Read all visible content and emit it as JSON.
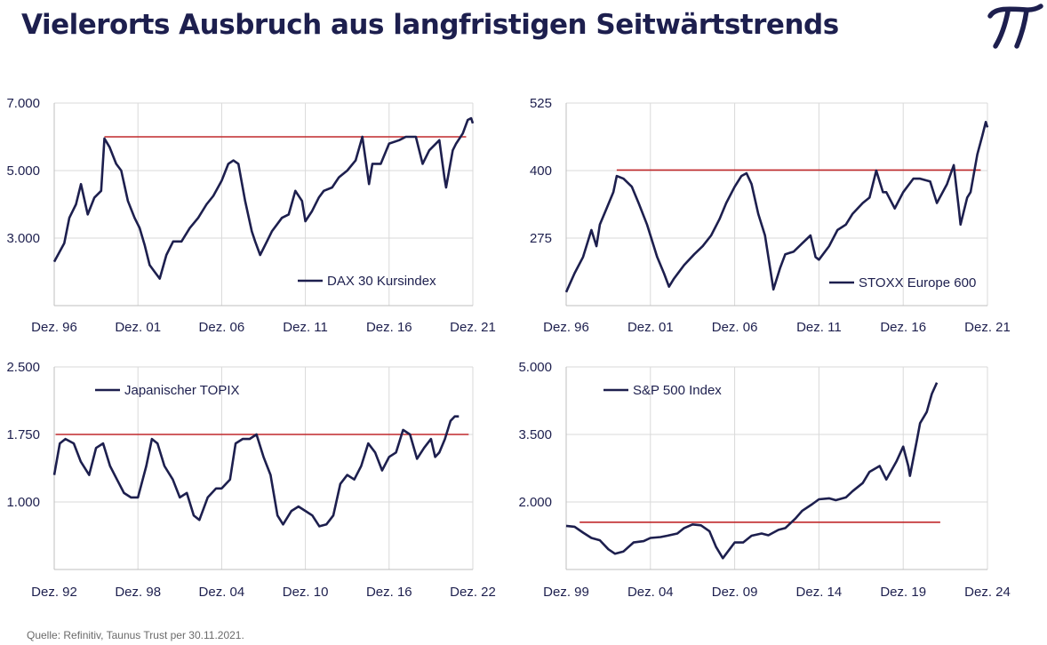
{
  "header": {
    "title": "Vielerorts Ausbruch aus langfristigen Seitwärtstrends",
    "logo_icon": "pi-logo-icon"
  },
  "footer": {
    "source": "Quelle: Refinitiv, Taunus Trust per 30.11.2021."
  },
  "colors": {
    "line": "#1d1f4e",
    "reference": "#c0292b",
    "grid": "#d9d9d9",
    "text": "#1d1f4e"
  },
  "chart_data": [
    {
      "type": "line",
      "title": "",
      "legend": "DAX 30 Kursindex",
      "legend_position": "bottom-right",
      "x_ticks": [
        "Dez. 96",
        "Dez. 01",
        "Dez. 06",
        "Dez. 11",
        "Dez. 16",
        "Dez. 21"
      ],
      "x_range": [
        1996.9,
        2021.9
      ],
      "y_ticks": [
        "7.000",
        "5.000",
        "3.000"
      ],
      "y_tick_values": [
        7000,
        5000,
        3000
      ],
      "ylim": [
        1000,
        7000
      ],
      "grid": true,
      "reference_line": {
        "value": 6000,
        "from": 1999.9,
        "to": 2021.5
      },
      "series": [
        {
          "name": "DAX 30 Kursindex",
          "x": [
            1996.9,
            1997.5,
            1997.8,
            1998.2,
            1998.5,
            1998.9,
            1999.3,
            1999.7,
            1999.9,
            2000.2,
            2000.6,
            2000.9,
            2001.3,
            2001.7,
            2002.0,
            2002.3,
            2002.6,
            2002.9,
            2003.2,
            2003.6,
            2004.0,
            2004.5,
            2005.0,
            2005.5,
            2006.0,
            2006.4,
            2006.9,
            2007.3,
            2007.6,
            2007.9,
            2008.3,
            2008.7,
            2008.9,
            2009.2,
            2009.6,
            2009.9,
            2010.5,
            2010.9,
            2011.3,
            2011.7,
            2011.9,
            2012.3,
            2012.7,
            2013.0,
            2013.5,
            2013.9,
            2014.4,
            2014.9,
            2015.3,
            2015.7,
            2015.9,
            2016.4,
            2016.9,
            2017.5,
            2017.9,
            2018.5,
            2018.9,
            2019.3,
            2019.9,
            2020.2,
            2020.3,
            2020.7,
            2020.9,
            2021.3,
            2021.6,
            2021.8,
            2021.9
          ],
          "values": [
            2300,
            2850,
            3600,
            4000,
            4600,
            3700,
            4200,
            4400,
            5950,
            5700,
            5200,
            5000,
            4100,
            3600,
            3300,
            2800,
            2200,
            2000,
            1800,
            2500,
            2900,
            2900,
            3300,
            3600,
            4000,
            4250,
            4700,
            5200,
            5300,
            5200,
            4100,
            3200,
            2900,
            2500,
            2900,
            3200,
            3600,
            3700,
            4400,
            4100,
            3500,
            3800,
            4200,
            4400,
            4500,
            4800,
            5000,
            5300,
            6000,
            4600,
            5200,
            5200,
            5800,
            5900,
            6000,
            6000,
            5200,
            5600,
            5900,
            4800,
            4500,
            5600,
            5800,
            6100,
            6500,
            6550,
            6400
          ]
        }
      ]
    },
    {
      "type": "line",
      "title": "",
      "legend": "STOXX Europe 600",
      "legend_position": "bottom-right",
      "x_ticks": [
        "Dez. 96",
        "Dez. 01",
        "Dez. 06",
        "Dez. 11",
        "Dez. 16",
        "Dez. 21"
      ],
      "x_range": [
        1996.9,
        2021.9
      ],
      "y_ticks": [
        "525",
        "400",
        "275"
      ],
      "y_tick_values": [
        525,
        400,
        275
      ],
      "ylim": [
        150,
        525
      ],
      "grid": true,
      "reference_line": {
        "value": 401,
        "from": 1999.9,
        "to": 2021.5
      },
      "series": [
        {
          "name": "STOXX Europe 600",
          "x": [
            1996.9,
            1997.4,
            1997.9,
            1998.4,
            1998.7,
            1998.9,
            1999.3,
            1999.7,
            1999.9,
            2000.3,
            2000.8,
            2001.2,
            2001.7,
            2002.3,
            2002.7,
            2003.0,
            2003.3,
            2003.9,
            2004.5,
            2005.0,
            2005.5,
            2006.0,
            2006.4,
            2006.9,
            2007.3,
            2007.6,
            2007.9,
            2008.3,
            2008.7,
            2008.9,
            2009.2,
            2009.6,
            2009.9,
            2010.4,
            2010.9,
            2011.4,
            2011.7,
            2011.9,
            2012.5,
            2013.0,
            2013.5,
            2013.9,
            2014.5,
            2014.9,
            2015.3,
            2015.7,
            2015.9,
            2016.4,
            2016.9,
            2017.5,
            2017.9,
            2018.5,
            2018.9,
            2019.5,
            2019.9,
            2020.2,
            2020.3,
            2020.7,
            2020.9,
            2021.3,
            2021.6,
            2021.8,
            2021.9
          ],
          "values": [
            175,
            210,
            240,
            290,
            260,
            300,
            330,
            360,
            390,
            385,
            370,
            340,
            300,
            240,
            210,
            185,
            200,
            225,
            245,
            260,
            280,
            310,
            340,
            370,
            390,
            395,
            375,
            320,
            280,
            240,
            180,
            220,
            245,
            250,
            265,
            280,
            240,
            235,
            260,
            290,
            300,
            320,
            340,
            350,
            400,
            360,
            360,
            330,
            360,
            385,
            385,
            380,
            340,
            375,
            410,
            330,
            300,
            350,
            360,
            430,
            465,
            490,
            480
          ]
        }
      ]
    },
    {
      "type": "line",
      "title": "",
      "legend": "Japanischer TOPIX",
      "legend_position": "top-left",
      "x_ticks": [
        "Dez. 92",
        "Dez. 98",
        "Dez. 04",
        "Dez. 10",
        "Dez. 16",
        "Dez. 22"
      ],
      "x_range": [
        1992.9,
        2022.9
      ],
      "y_ticks": [
        "2.500",
        "1.750",
        "1.000"
      ],
      "y_tick_values": [
        2500,
        1750,
        1000
      ],
      "ylim": [
        250,
        2500
      ],
      "grid": true,
      "reference_line": {
        "value": 1750,
        "from": 1993.0,
        "to": 2022.6
      },
      "series": [
        {
          "name": "Japanischer TOPIX",
          "x": [
            1992.9,
            1993.3,
            1993.7,
            1994.3,
            1994.8,
            1995.4,
            1995.9,
            1996.4,
            1996.9,
            1997.4,
            1997.9,
            1998.4,
            1998.9,
            1999.5,
            1999.9,
            2000.3,
            2000.8,
            2001.4,
            2001.9,
            2002.4,
            2002.9,
            2003.3,
            2003.9,
            2004.5,
            2004.9,
            2005.5,
            2005.9,
            2006.4,
            2006.9,
            2007.4,
            2007.9,
            2008.4,
            2008.9,
            2009.3,
            2009.9,
            2010.4,
            2010.9,
            2011.4,
            2011.9,
            2012.4,
            2012.9,
            2013.4,
            2013.9,
            2014.4,
            2014.9,
            2015.4,
            2015.9,
            2016.4,
            2016.9,
            2017.4,
            2017.9,
            2018.4,
            2018.9,
            2019.4,
            2019.9,
            2020.2,
            2020.5,
            2020.9,
            2021.3,
            2021.6,
            2021.9
          ],
          "values": [
            1300,
            1650,
            1700,
            1650,
            1450,
            1300,
            1600,
            1650,
            1400,
            1250,
            1100,
            1050,
            1050,
            1400,
            1700,
            1650,
            1400,
            1250,
            1050,
            1100,
            850,
            800,
            1050,
            1150,
            1150,
            1250,
            1650,
            1700,
            1700,
            1750,
            1500,
            1300,
            850,
            750,
            900,
            950,
            900,
            850,
            730,
            750,
            850,
            1200,
            1300,
            1250,
            1400,
            1650,
            1550,
            1350,
            1500,
            1550,
            1800,
            1750,
            1480,
            1600,
            1700,
            1500,
            1550,
            1700,
            1900,
            1950,
            1950
          ]
        }
      ]
    },
    {
      "type": "line",
      "title": "",
      "legend": "S&P 500 Index",
      "legend_position": "top-left",
      "x_ticks": [
        "Dez. 99",
        "Dez. 04",
        "Dez. 09",
        "Dez. 14",
        "Dez. 19",
        "Dez. 24"
      ],
      "x_range": [
        1999.9,
        2024.9
      ],
      "y_ticks": [
        "5.000",
        "3.500",
        "2.000"
      ],
      "y_tick_values": [
        5000,
        3500,
        2000
      ],
      "ylim": [
        500,
        5000
      ],
      "grid": true,
      "reference_line": {
        "value": 1550,
        "from": 2000.7,
        "to": 2022.1
      },
      "series": [
        {
          "name": "S&P 500 Index",
          "x": [
            1999.9,
            2000.4,
            2000.9,
            2001.4,
            2001.9,
            2002.4,
            2002.8,
            2003.3,
            2003.9,
            2004.5,
            2004.9,
            2005.5,
            2005.9,
            2006.5,
            2006.9,
            2007.4,
            2007.9,
            2008.4,
            2008.8,
            2009.2,
            2009.6,
            2009.9,
            2010.4,
            2010.9,
            2011.5,
            2011.9,
            2012.5,
            2012.9,
            2013.5,
            2013.9,
            2014.5,
            2014.9,
            2015.5,
            2015.9,
            2016.5,
            2016.9,
            2017.5,
            2017.9,
            2018.5,
            2018.9,
            2019.5,
            2019.9,
            2020.2,
            2020.3,
            2020.7,
            2020.9,
            2021.3,
            2021.6,
            2021.9
          ],
          "values": [
            1470,
            1450,
            1320,
            1200,
            1150,
            950,
            850,
            900,
            1100,
            1130,
            1200,
            1220,
            1250,
            1300,
            1420,
            1500,
            1480,
            1350,
            1000,
            750,
            950,
            1100,
            1100,
            1250,
            1300,
            1260,
            1380,
            1420,
            1630,
            1800,
            1950,
            2060,
            2080,
            2040,
            2100,
            2240,
            2420,
            2670,
            2800,
            2500,
            2900,
            3230,
            2800,
            2580,
            3350,
            3750,
            4000,
            4400,
            4650
          ]
        }
      ]
    }
  ]
}
